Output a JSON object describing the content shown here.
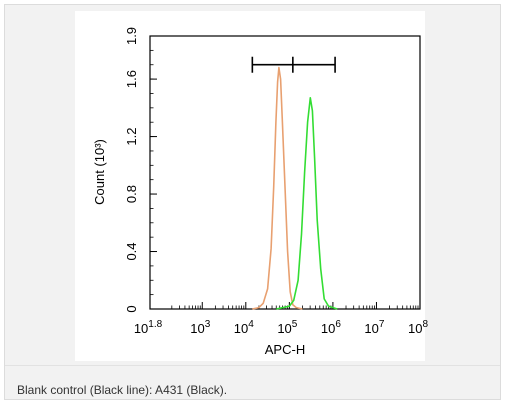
{
  "caption": "Blank control (Black line): A431 (Black).",
  "colors": {
    "blank_series": "#e8a070",
    "sample_series": "#33dd33",
    "gate": "#000000"
  },
  "chart_data": {
    "type": "line",
    "xlabel": "APC-H",
    "ylabel": "Count (10³)",
    "xscale": "log",
    "xlim": [
      1.8,
      8
    ],
    "ylim": [
      0,
      1.9
    ],
    "x_ticks": [
      {
        "base": "10",
        "exp": "1.8",
        "value": 1.8
      },
      {
        "base": "10",
        "exp": "3",
        "value": 3
      },
      {
        "base": "10",
        "exp": "4",
        "value": 4
      },
      {
        "base": "10",
        "exp": "5",
        "value": 5
      },
      {
        "base": "10",
        "exp": "6",
        "value": 6
      },
      {
        "base": "10",
        "exp": "7",
        "value": 7
      },
      {
        "base": "10",
        "exp": "8",
        "value": 8
      }
    ],
    "y_ticks": [
      {
        "label": "0",
        "value": 0
      },
      {
        "label": "0.4",
        "value": 0.4
      },
      {
        "label": "0.8",
        "value": 0.8
      },
      {
        "label": "1.2",
        "value": 1.2
      },
      {
        "label": "1.6",
        "value": 1.6
      },
      {
        "label": "1.9",
        "value": 1.9
      }
    ],
    "gate": {
      "x_start": 4.15,
      "x_mid": 5.08,
      "x_end": 6.05,
      "y": 1.7
    },
    "series": [
      {
        "color": "#e8a070",
        "points": [
          [
            4.15,
            0
          ],
          [
            4.3,
            0.01
          ],
          [
            4.4,
            0.04
          ],
          [
            4.5,
            0.14
          ],
          [
            4.58,
            0.42
          ],
          [
            4.64,
            0.85
          ],
          [
            4.69,
            1.3
          ],
          [
            4.73,
            1.58
          ],
          [
            4.76,
            1.68
          ],
          [
            4.8,
            1.6
          ],
          [
            4.84,
            1.3
          ],
          [
            4.9,
            0.85
          ],
          [
            4.96,
            0.4
          ],
          [
            5.02,
            0.12
          ],
          [
            5.08,
            0.03
          ],
          [
            5.16,
            0.01
          ],
          [
            5.3,
            0
          ]
        ]
      },
      {
        "color": "#33dd33",
        "points": [
          [
            4.7,
            0
          ],
          [
            4.85,
            0.01
          ],
          [
            5.0,
            0.02
          ],
          [
            5.1,
            0.06
          ],
          [
            5.2,
            0.2
          ],
          [
            5.28,
            0.52
          ],
          [
            5.35,
            0.95
          ],
          [
            5.42,
            1.3
          ],
          [
            5.48,
            1.47
          ],
          [
            5.53,
            1.38
          ],
          [
            5.58,
            1.05
          ],
          [
            5.64,
            0.62
          ],
          [
            5.72,
            0.28
          ],
          [
            5.8,
            0.07
          ],
          [
            5.9,
            0.02
          ],
          [
            6.0,
            0.01
          ],
          [
            6.1,
            0
          ]
        ]
      }
    ]
  }
}
